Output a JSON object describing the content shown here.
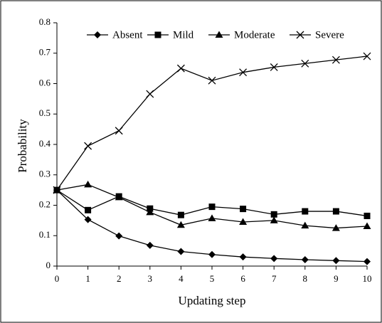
{
  "chart_data": {
    "type": "line",
    "xlabel": "Updating step",
    "ylabel": "Probability",
    "x": [
      0,
      1,
      2,
      3,
      4,
      5,
      6,
      7,
      8,
      9,
      10
    ],
    "xlim": [
      0,
      10
    ],
    "xticks": [
      0,
      1,
      2,
      3,
      4,
      5,
      6,
      7,
      8,
      9,
      10
    ],
    "ylim": [
      0,
      0.8
    ],
    "yticks": [
      0,
      0.1,
      0.2,
      0.3,
      0.4,
      0.5,
      0.6,
      0.7,
      0.8
    ],
    "grid": false,
    "legend": "top",
    "series": [
      {
        "name": "Absent",
        "color": "#000000",
        "marker": "diamond",
        "values": [
          0.25,
          0.153,
          0.099,
          0.068,
          0.048,
          0.038,
          0.03,
          0.025,
          0.021,
          0.018,
          0.015
        ]
      },
      {
        "name": "Mild",
        "color": "#000000",
        "marker": "square",
        "values": [
          0.25,
          0.184,
          0.229,
          0.189,
          0.168,
          0.195,
          0.188,
          0.17,
          0.18,
          0.18,
          0.165
        ]
      },
      {
        "name": "Moderate",
        "color": "#000000",
        "marker": "triangle",
        "values": [
          0.25,
          0.268,
          0.226,
          0.177,
          0.135,
          0.157,
          0.145,
          0.15,
          0.133,
          0.125,
          0.131
        ]
      },
      {
        "name": "Severe",
        "color": "#000000",
        "marker": "x",
        "values": [
          0.25,
          0.395,
          0.445,
          0.566,
          0.65,
          0.61,
          0.637,
          0.654,
          0.666,
          0.678,
          0.69
        ]
      }
    ]
  }
}
